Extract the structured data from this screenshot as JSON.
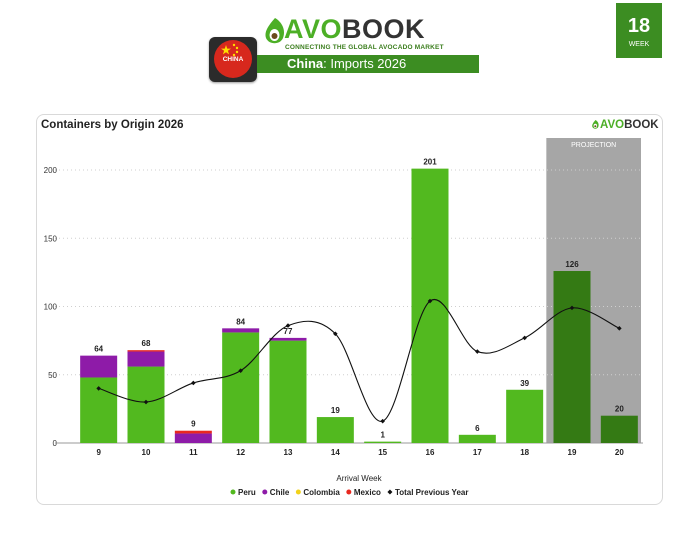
{
  "header": {
    "logo_text_accent": "AVO",
    "logo_text_main": "BOOK",
    "tagline": "CONNECTING THE GLOBAL AVOCADO MARKET",
    "flag_label": "CHINA",
    "country": "China",
    "subtitle_rest": ": Imports 2026",
    "week_number": "18",
    "week_label": "WEEK"
  },
  "mini_logo": {
    "accent": "AVO",
    "main": "BOOK"
  },
  "colors": {
    "brand_green": "#3c8d22",
    "peru": "#52b91f",
    "peru_projection": "#347a14",
    "chile": "#8e1ba8",
    "colombia": "#f2d21a",
    "mexico": "#e8281f",
    "previous_year": "#111111",
    "projection_band": "#a6a6a6"
  },
  "chart_data": {
    "type": "bar",
    "stacked": true,
    "title": "Containers by Origin 2026",
    "xlabel": "Arrival Week",
    "ylabel": "",
    "ylim": [
      0,
      215
    ],
    "yticks": [
      0,
      50,
      100,
      150,
      200
    ],
    "grid": true,
    "legend_position": "bottom",
    "categories": [
      "9",
      "10",
      "11",
      "12",
      "13",
      "14",
      "15",
      "16",
      "17",
      "18",
      "19",
      "20"
    ],
    "projection_label": "PROJECTION",
    "projection_categories": [
      "19",
      "20"
    ],
    "series": [
      {
        "name": "Peru",
        "values": [
          48,
          56,
          0,
          81,
          75,
          19,
          1,
          201,
          6,
          39,
          126,
          20
        ]
      },
      {
        "name": "Chile",
        "values": [
          16,
          11,
          7,
          3,
          2,
          0,
          0,
          0,
          0,
          0,
          0,
          0
        ]
      },
      {
        "name": "Colombia",
        "values": [
          0,
          0,
          0,
          0,
          0,
          0,
          0,
          0,
          0,
          0,
          0,
          0
        ]
      },
      {
        "name": "Mexico",
        "values": [
          0,
          1,
          2,
          0,
          0,
          0,
          0,
          0,
          0,
          0,
          0,
          0
        ]
      }
    ],
    "totals": [
      64,
      68,
      9,
      84,
      77,
      19,
      1,
      201,
      6,
      39,
      126,
      20
    ],
    "line": {
      "name": "Total Previous Year",
      "values": [
        40,
        30,
        44,
        53,
        86,
        80,
        16,
        104,
        67,
        77,
        99,
        84
      ]
    }
  }
}
